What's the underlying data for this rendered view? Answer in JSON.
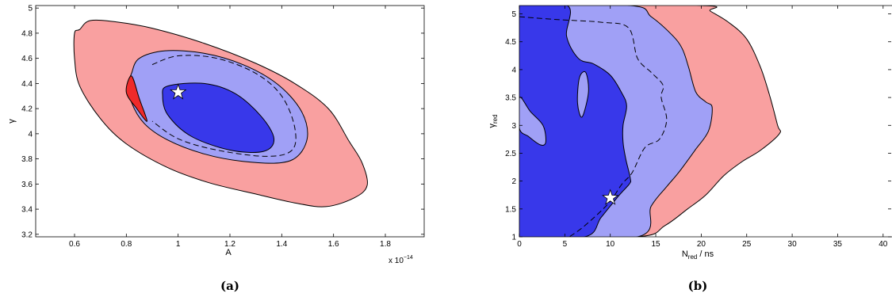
{
  "chart_data": [
    {
      "type": "contour",
      "panel_label": "(a)",
      "xlabel": "A",
      "ylabel": "γ",
      "x_multiplier": "x 10",
      "x_multiplier_exp": "−14",
      "xlim": [
        0.45,
        1.95
      ],
      "ylim": [
        3.18,
        5.02
      ],
      "xticks": [
        "0.6",
        "0.8",
        "1",
        "1.2",
        "1.4",
        "1.6",
        "1.8"
      ],
      "yticks": [
        "3.2",
        "3.4",
        "3.6",
        "3.8",
        "4",
        "4.2",
        "4.4",
        "4.6",
        "4.8",
        "5"
      ],
      "colors": {
        "outer": "#f9a0a0",
        "middle": "#a0a0f6",
        "inner": "#3838ea",
        "dark_red": "#ee2a2a"
      },
      "marker": {
        "shape": "star",
        "x": 1.0,
        "y": 4.33
      },
      "regions": [
        {
          "name": "outer",
          "points": [
            [
              0.62,
              4.83
            ],
            [
              0.66,
              4.9
            ],
            [
              0.76,
              4.89
            ],
            [
              0.9,
              4.84
            ],
            [
              1.1,
              4.72
            ],
            [
              1.3,
              4.56
            ],
            [
              1.45,
              4.4
            ],
            [
              1.58,
              4.2
            ],
            [
              1.66,
              3.94
            ],
            [
              1.71,
              3.77
            ],
            [
              1.73,
              3.59
            ],
            [
              1.68,
              3.49
            ],
            [
              1.57,
              3.42
            ],
            [
              1.45,
              3.45
            ],
            [
              1.3,
              3.52
            ],
            [
              1.12,
              3.61
            ],
            [
              0.96,
              3.73
            ],
            [
              0.8,
              3.92
            ],
            [
              0.7,
              4.12
            ],
            [
              0.62,
              4.38
            ],
            [
              0.6,
              4.6
            ],
            [
              0.6,
              4.8
            ]
          ]
        },
        {
          "name": "middle",
          "points": [
            [
              0.82,
              4.48
            ],
            [
              0.85,
              4.6
            ],
            [
              0.95,
              4.66
            ],
            [
              1.1,
              4.64
            ],
            [
              1.25,
              4.55
            ],
            [
              1.38,
              4.4
            ],
            [
              1.47,
              4.2
            ],
            [
              1.5,
              4.0
            ],
            [
              1.47,
              3.84
            ],
            [
              1.4,
              3.77
            ],
            [
              1.25,
              3.78
            ],
            [
              1.1,
              3.84
            ],
            [
              0.96,
              3.95
            ],
            [
              0.87,
              4.08
            ],
            [
              0.82,
              4.25
            ],
            [
              0.81,
              4.4
            ]
          ]
        },
        {
          "name": "dark_red",
          "points": [
            [
              0.82,
              4.46
            ],
            [
              0.85,
              4.28
            ],
            [
              0.88,
              4.1
            ],
            [
              0.84,
              4.2
            ],
            [
              0.8,
              4.33
            ]
          ]
        },
        {
          "name": "inner",
          "points": [
            [
              0.96,
              4.38
            ],
            [
              1.1,
              4.4
            ],
            [
              1.22,
              4.32
            ],
            [
              1.32,
              4.14
            ],
            [
              1.37,
              3.96
            ],
            [
              1.33,
              3.86
            ],
            [
              1.2,
              3.87
            ],
            [
              1.05,
              3.98
            ],
            [
              0.96,
              4.15
            ],
            [
              0.94,
              4.3
            ]
          ]
        }
      ],
      "dashed_line": {
        "points": [
          [
            0.9,
            4.55
          ],
          [
            1.0,
            4.62
          ],
          [
            1.15,
            4.6
          ],
          [
            1.3,
            4.48
          ],
          [
            1.4,
            4.3
          ],
          [
            1.45,
            4.05
          ],
          [
            1.44,
            3.87
          ],
          [
            1.34,
            3.82
          ],
          [
            1.15,
            3.87
          ],
          [
            1.0,
            3.96
          ],
          [
            0.9,
            4.1
          ]
        ]
      }
    },
    {
      "type": "contour",
      "panel_label": "(b)",
      "xlabel": "N",
      "xlabel_sub": "red",
      "xlabel_suffix": " / ns",
      "ylabel": "γ",
      "ylabel_sub": "red",
      "xlim": [
        0,
        41.5
      ],
      "ylim": [
        1,
        5.15
      ],
      "xticks": [
        "0",
        "5",
        "10",
        "15",
        "20",
        "25",
        "30",
        "35",
        "40"
      ],
      "yticks": [
        "1",
        "1.5",
        "2",
        "2.5",
        "3",
        "3.5",
        "4",
        "4.5",
        "5"
      ],
      "colors": {
        "outer": "#f9a0a0",
        "middle": "#a0a0f6",
        "inner": "#3838ea"
      },
      "marker": {
        "shape": "star",
        "x": 10.0,
        "y": 1.7
      },
      "regions": [
        {
          "name": "outer",
          "points": [
            [
              0,
              5.15
            ],
            [
              20,
              5.15
            ],
            [
              21,
              5.05
            ],
            [
              23,
              4.85
            ],
            [
              25,
              4.55
            ],
            [
              26.5,
              4.05
            ],
            [
              27.5,
              3.55
            ],
            [
              28.4,
              3.0
            ],
            [
              28.6,
              2.85
            ],
            [
              26.5,
              2.55
            ],
            [
              24.5,
              2.35
            ],
            [
              22.5,
              2.1
            ],
            [
              20.5,
              1.75
            ],
            [
              18.5,
              1.5
            ],
            [
              16,
              1.2
            ],
            [
              13,
              1.0
            ],
            [
              0,
              1.0
            ]
          ]
        },
        {
          "name": "middle",
          "points": [
            [
              0,
              5.15
            ],
            [
              12.2,
              5.15
            ],
            [
              14.5,
              4.95
            ],
            [
              16.8,
              4.62
            ],
            [
              17.9,
              4.38
            ],
            [
              18.6,
              4.05
            ],
            [
              19.4,
              3.6
            ],
            [
              20.5,
              3.42
            ],
            [
              21.2,
              3.32
            ],
            [
              20.8,
              2.9
            ],
            [
              19.3,
              2.55
            ],
            [
              17.5,
              2.15
            ],
            [
              16.2,
              1.9
            ],
            [
              14.5,
              1.55
            ],
            [
              13,
              1.0
            ],
            [
              0,
              1.0
            ]
          ]
        },
        {
          "name": "inner",
          "points": [
            [
              0,
              5.15
            ],
            [
              5.3,
              5.15
            ],
            [
              5.2,
              4.6
            ],
            [
              6.5,
              4.2
            ],
            [
              8.2,
              4.1
            ],
            [
              10,
              3.9
            ],
            [
              11.2,
              3.6
            ],
            [
              11.8,
              3.35
            ],
            [
              11.4,
              3.0
            ],
            [
              11.4,
              2.7
            ],
            [
              11.7,
              2.4
            ],
            [
              12.2,
              2.05
            ],
            [
              12.1,
              1.95
            ],
            [
              11.0,
              1.75
            ],
            [
              9.0,
              1.35
            ],
            [
              7.2,
              1.0
            ],
            [
              0,
              1.0
            ]
          ]
        },
        {
          "name": "middle",
          "points": [
            [
              0,
              3.5
            ],
            [
              1.2,
              3.25
            ],
            [
              2.6,
              3.0
            ],
            [
              2.9,
              2.7
            ],
            [
              2.3,
              2.65
            ],
            [
              1.0,
              2.8
            ],
            [
              0,
              2.95
            ]
          ]
        },
        {
          "name": "middle",
          "points": [
            [
              6.6,
              3.85
            ],
            [
              7.3,
              3.95
            ],
            [
              7.6,
              3.6
            ],
            [
              6.9,
              3.15
            ],
            [
              6.4,
              3.4
            ]
          ]
        }
      ],
      "dashed_line": {
        "points": [
          [
            0,
            4.95
          ],
          [
            4,
            4.9
          ],
          [
            9,
            4.85
          ],
          [
            12,
            4.75
          ],
          [
            13,
            4.2
          ],
          [
            14.5,
            3.95
          ],
          [
            15.8,
            3.72
          ],
          [
            15.6,
            3.5
          ],
          [
            16.2,
            3.1
          ],
          [
            15.4,
            2.75
          ],
          [
            13.8,
            2.6
          ],
          [
            12.4,
            2.15
          ],
          [
            11.3,
            1.95
          ],
          [
            9.8,
            1.6
          ],
          [
            7.2,
            1.2
          ],
          [
            5.5,
            1.0
          ]
        ]
      }
    }
  ]
}
